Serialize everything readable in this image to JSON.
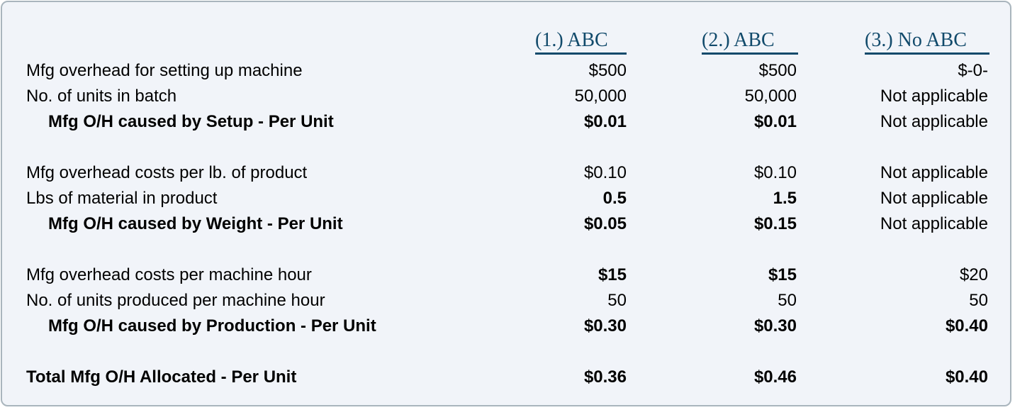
{
  "headers": [
    "(1.) ABC ",
    "(2.) ABC ",
    "(3.) No ABC "
  ],
  "accent_color": "#114a6b",
  "rows": [
    {
      "label": "Mfg overhead for setting up machine",
      "indent": false,
      "bold": false,
      "values": [
        "$500",
        "$500",
        "$-0-"
      ],
      "bold_values": [
        false,
        false,
        false
      ]
    },
    {
      "label": "No. of units in batch",
      "indent": false,
      "bold": false,
      "values": [
        "50,000",
        "50,000",
        "Not applicable"
      ],
      "bold_values": [
        false,
        false,
        false
      ]
    },
    {
      "label": "Mfg O/H caused by Setup - Per Unit",
      "indent": true,
      "bold": true,
      "values": [
        "$0.01",
        "$0.01",
        "Not applicable"
      ],
      "bold_values": [
        true,
        true,
        false
      ]
    },
    {
      "label": "Mfg overhead costs per lb. of product",
      "indent": false,
      "bold": false,
      "values": [
        "$0.10",
        "$0.10",
        "Not applicable"
      ],
      "bold_values": [
        false,
        false,
        false
      ]
    },
    {
      "label": "Lbs of material in product",
      "indent": false,
      "bold": false,
      "values": [
        "0.5",
        "1.5",
        "Not applicable"
      ],
      "bold_values": [
        true,
        true,
        false
      ]
    },
    {
      "label": "Mfg O/H caused by Weight - Per Unit",
      "indent": true,
      "bold": true,
      "values": [
        "$0.05",
        "$0.15",
        "Not applicable"
      ],
      "bold_values": [
        true,
        true,
        false
      ]
    },
    {
      "label": "Mfg overhead costs per machine hour",
      "indent": false,
      "bold": false,
      "values": [
        "$15",
        "$15",
        "$20"
      ],
      "bold_values": [
        true,
        true,
        false
      ]
    },
    {
      "label": "No. of units produced per machine hour",
      "indent": false,
      "bold": false,
      "values": [
        "50",
        "50",
        "50"
      ],
      "bold_values": [
        false,
        false,
        false
      ]
    },
    {
      "label": "Mfg O/H caused by Production - Per Unit",
      "indent": true,
      "bold": true,
      "values": [
        "$0.30",
        "$0.30",
        "$0.40"
      ],
      "bold_values": [
        true,
        true,
        true
      ]
    },
    {
      "label": "Total Mfg O/H Allocated - Per Unit",
      "indent": false,
      "bold": true,
      "values": [
        "$0.36",
        "$0.46",
        "$0.40"
      ],
      "bold_values": [
        true,
        true,
        true
      ]
    }
  ]
}
